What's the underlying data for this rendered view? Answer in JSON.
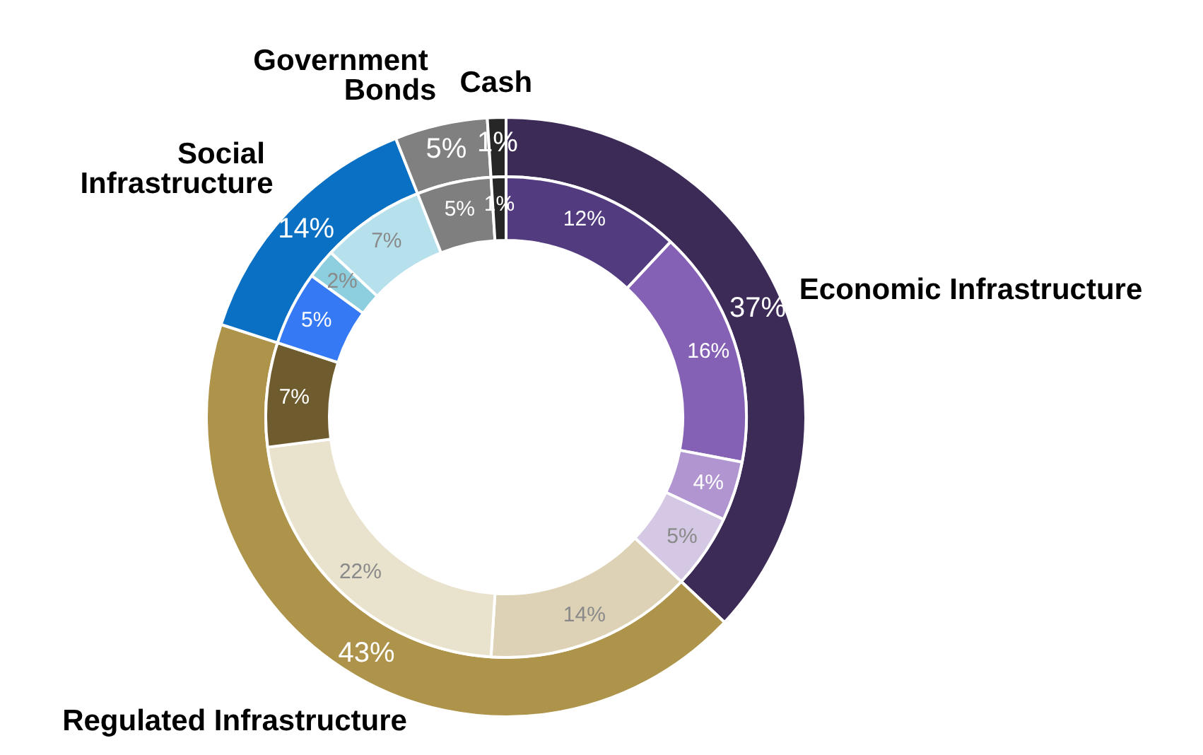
{
  "chart_data": [
    {
      "type": "donut",
      "categories": [
        "Economic Infrastructure",
        "Regulated Infrastructure",
        "Social Infrastructure",
        "Government Bonds",
        "Cash"
      ],
      "values": [
        37,
        43,
        14,
        5,
        1
      ],
      "colors": [
        "#3c2a57",
        "#ad944a",
        "#0a70c4",
        "#808080",
        "#262626"
      ],
      "value_labels": [
        "37%",
        "43%",
        "14%",
        "5%",
        "1%"
      ],
      "legend": false
    },
    {
      "type": "donut",
      "categories": [
        null,
        null,
        null,
        null,
        null,
        null,
        null,
        null,
        null,
        null,
        null,
        null
      ],
      "values": [
        12,
        16,
        4,
        5,
        14,
        22,
        7,
        5,
        2,
        7,
        5,
        1
      ],
      "colors": [
        "#533b80",
        "#8561b5",
        "#b095d0",
        "#d5c8e4",
        "#ddd2b5",
        "#e9e2cd",
        "#6e5c2f",
        "#3679f5",
        "#8ecfdf",
        "#b6e0ec",
        "#7f7f7f",
        "#262626"
      ],
      "value_labels": [
        "12%",
        "16%",
        "4%",
        "5%",
        "14%",
        "22%",
        "7%",
        "5%",
        "2%",
        "7%",
        "5%",
        "1%"
      ],
      "legend": false
    }
  ]
}
